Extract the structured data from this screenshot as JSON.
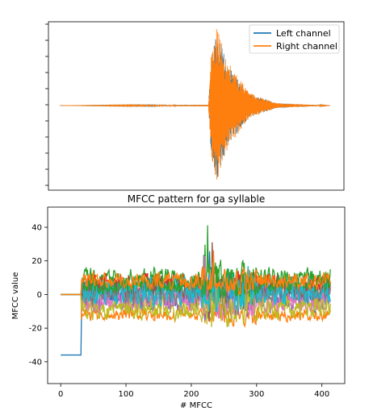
{
  "chart_data": [
    {
      "type": "line",
      "title": "",
      "xlabel": "",
      "ylabel": "",
      "ticks_labeled": false,
      "x_range": [
        0,
        1
      ],
      "y_range": [
        -1,
        1
      ],
      "legend": {
        "placement": "top-right",
        "entries": [
          "Left channel",
          "Right channel"
        ]
      },
      "series": [
        {
          "name": "Left channel",
          "color": "#1f77b4",
          "description_points": [
            [
              0.0,
              0.0
            ],
            [
              0.55,
              0.01
            ],
            [
              0.56,
              0.6
            ],
            [
              0.58,
              0.95
            ],
            [
              0.62,
              0.5
            ],
            [
              0.7,
              0.15
            ],
            [
              0.8,
              0.03
            ],
            [
              1.0,
              0.0
            ]
          ]
        },
        {
          "name": "Right channel",
          "color": "#ff7f0e",
          "description_points": [
            [
              0.0,
              0.0
            ],
            [
              0.55,
              0.01
            ],
            [
              0.56,
              0.65
            ],
            [
              0.58,
              1.0
            ],
            [
              0.62,
              0.55
            ],
            [
              0.7,
              0.16
            ],
            [
              0.8,
              0.03
            ],
            [
              1.0,
              0.0
            ]
          ]
        }
      ]
    },
    {
      "type": "line",
      "title": "MFCC pattern for ga syllable",
      "xlabel": "# MFCC",
      "ylabel": "MFCC value",
      "xlim": [
        -20,
        435
      ],
      "ylim": [
        -53,
        52
      ],
      "xticks": [
        0,
        100,
        200,
        300,
        400
      ],
      "yticks": [
        -40,
        -20,
        0,
        20,
        40
      ],
      "n_points": 414,
      "series": [
        {
          "color": "#1f77b4",
          "start": -36,
          "base": 0,
          "spread": 12
        },
        {
          "color": "#ff7f0e",
          "start": 0,
          "base": -12,
          "spread": 5
        },
        {
          "color": "#2ca02c",
          "start": 0,
          "base": 10,
          "spread": 8
        },
        {
          "color": "#d62728",
          "start": 0,
          "base": 5,
          "spread": 9
        },
        {
          "color": "#9467bd",
          "start": 0,
          "base": -3,
          "spread": 10
        },
        {
          "color": "#8c564b",
          "start": 0,
          "base": 3,
          "spread": 8
        },
        {
          "color": "#e377c2",
          "start": 0,
          "base": -5,
          "spread": 9
        },
        {
          "color": "#7f7f7f",
          "start": 0,
          "base": 0,
          "spread": 8
        },
        {
          "color": "#bcbd22",
          "start": 0,
          "base": -8,
          "spread": 9
        },
        {
          "color": "#17becf",
          "start": 0,
          "base": 2,
          "spread": 11
        },
        {
          "color": "#2ca02c",
          "start": 0,
          "base": 6,
          "spread": 7
        },
        {
          "color": "#ff7f0e",
          "start": 0,
          "base": 8,
          "spread": 7
        }
      ]
    }
  ]
}
